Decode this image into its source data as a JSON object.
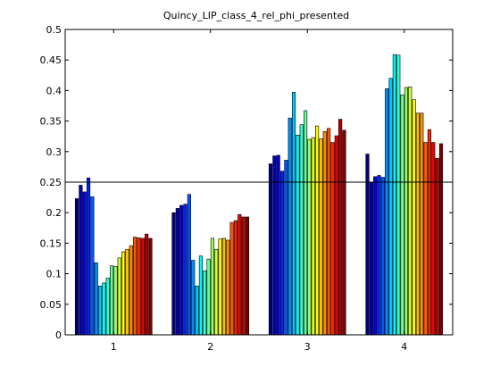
{
  "chart_data": {
    "type": "bar",
    "title": "Quincy_LIP_class_4_rel_phi_presented",
    "xlabel": "",
    "ylabel": "",
    "categories": [
      "1",
      "2",
      "3",
      "4"
    ],
    "ylim": [
      0,
      0.5
    ],
    "yticks": [
      "0",
      "0.05",
      "0.1",
      "0.15",
      "0.2",
      "0.25",
      "0.3",
      "0.35",
      "0.4",
      "0.45",
      "0.5"
    ],
    "reference_line": 0.25,
    "grid": false,
    "legend": "none",
    "colormap": "jet",
    "groups": [
      {
        "category": "1",
        "values": [
          0.223,
          0.245,
          0.234,
          0.257,
          0.226,
          0.118,
          0.08,
          0.085,
          0.093,
          0.113,
          0.112,
          0.126,
          0.136,
          0.14,
          0.146,
          0.16,
          0.159,
          0.158,
          0.165,
          0.158
        ]
      },
      {
        "category": "2",
        "values": [
          0.2,
          0.207,
          0.212,
          0.214,
          0.23,
          0.122,
          0.08,
          0.129,
          0.105,
          0.124,
          0.158,
          0.14,
          0.157,
          0.158,
          0.155,
          0.184,
          0.187,
          0.197,
          0.193,
          0.193
        ]
      },
      {
        "category": "3",
        "values": [
          0.28,
          0.293,
          0.294,
          0.268,
          0.286,
          0.355,
          0.397,
          0.327,
          0.344,
          0.367,
          0.32,
          0.323,
          0.342,
          0.321,
          0.333,
          0.338,
          0.315,
          0.326,
          0.353,
          0.335
        ]
      },
      {
        "category": "4",
        "values": [
          0.296,
          0.25,
          0.259,
          0.261,
          0.258,
          0.403,
          0.42,
          0.459,
          0.458,
          0.393,
          0.405,
          0.406,
          0.385,
          0.363,
          0.363,
          0.315,
          0.336,
          0.315,
          0.289,
          0.313
        ]
      }
    ]
  }
}
